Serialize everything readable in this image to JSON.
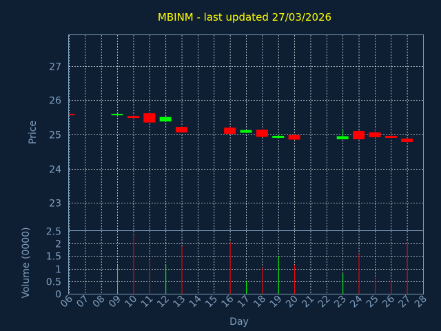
{
  "chart_data": {
    "type": "candlestick",
    "title": "MBINM - last updated 27/03/2026",
    "xlabel": "Day",
    "x_ticks": [
      "06",
      "07",
      "08",
      "09",
      "10",
      "11",
      "12",
      "13",
      "14",
      "15",
      "16",
      "17",
      "18",
      "19",
      "20",
      "21",
      "22",
      "23",
      "24",
      "25",
      "26",
      "27",
      "28"
    ],
    "price": {
      "ylabel": "Price",
      "ylim": [
        22.2,
        27.9
      ],
      "y_ticks": [
        23,
        24,
        25,
        26,
        27
      ],
      "candles": [
        {
          "day": "06",
          "open": 25.6,
          "high": 25.62,
          "low": 25.56,
          "close": 25.58
        },
        {
          "day": "09",
          "open": 25.57,
          "high": 25.62,
          "low": 25.54,
          "close": 25.6
        },
        {
          "day": "10",
          "open": 25.54,
          "high": 25.56,
          "low": 25.46,
          "close": 25.48
        },
        {
          "day": "11",
          "open": 25.62,
          "high": 25.64,
          "low": 25.32,
          "close": 25.35
        },
        {
          "day": "12",
          "open": 25.38,
          "high": 25.52,
          "low": 25.36,
          "close": 25.51
        },
        {
          "day": "13",
          "open": 25.22,
          "high": 25.24,
          "low": 25.04,
          "close": 25.06
        },
        {
          "day": "16",
          "open": 25.2,
          "high": 25.23,
          "low": 25.0,
          "close": 25.02
        },
        {
          "day": "17",
          "open": 25.05,
          "high": 25.13,
          "low": 25.04,
          "close": 25.13
        },
        {
          "day": "18",
          "open": 25.14,
          "high": 25.16,
          "low": 24.92,
          "close": 24.93
        },
        {
          "day": "19",
          "open": 24.9,
          "high": 25.0,
          "low": 24.88,
          "close": 24.96
        },
        {
          "day": "20",
          "open": 24.98,
          "high": 25.0,
          "low": 24.84,
          "close": 24.85
        },
        {
          "day": "23",
          "open": 24.86,
          "high": 25.12,
          "low": 24.86,
          "close": 24.95
        },
        {
          "day": "24",
          "open": 25.1,
          "high": 25.12,
          "low": 24.84,
          "close": 24.86
        },
        {
          "day": "25",
          "open": 25.06,
          "high": 25.15,
          "low": 24.9,
          "close": 24.92
        },
        {
          "day": "26",
          "open": 24.96,
          "high": 25.05,
          "low": 24.88,
          "close": 24.9
        },
        {
          "day": "27",
          "open": 24.88,
          "high": 24.9,
          "low": 24.74,
          "close": 24.78
        }
      ]
    },
    "volume": {
      "ylabel": "Volume (0000)",
      "ylim": [
        0,
        2.5
      ],
      "y_ticks": [
        "0",
        "0.5",
        "1",
        "1.5",
        "2",
        "2.5"
      ],
      "bars": [
        {
          "day": "09",
          "value": 1.15,
          "direction": "up"
        },
        {
          "day": "10",
          "value": 2.35,
          "direction": "down"
        },
        {
          "day": "11",
          "value": 1.35,
          "direction": "down"
        },
        {
          "day": "12",
          "value": 1.15,
          "direction": "up"
        },
        {
          "day": "13",
          "value": 1.9,
          "direction": "down"
        },
        {
          "day": "16",
          "value": 2.05,
          "direction": "down"
        },
        {
          "day": "17",
          "value": 0.5,
          "direction": "up"
        },
        {
          "day": "18",
          "value": 1.05,
          "direction": "down"
        },
        {
          "day": "19",
          "value": 1.5,
          "direction": "up"
        },
        {
          "day": "20",
          "value": 1.15,
          "direction": "down"
        },
        {
          "day": "23",
          "value": 0.8,
          "direction": "up"
        },
        {
          "day": "24",
          "value": 1.6,
          "direction": "down"
        },
        {
          "day": "25",
          "value": 0.7,
          "direction": "down"
        },
        {
          "day": "26",
          "value": 0.55,
          "direction": "down"
        },
        {
          "day": "27",
          "value": 2.05,
          "direction": "down"
        }
      ]
    },
    "grid": true,
    "colors": {
      "background": "#0f1f33",
      "up": "#00ff00",
      "down": "#ff0000",
      "axis_text": "#7f9fbf",
      "title": "#ffff00",
      "grid": "#ffffff"
    }
  }
}
